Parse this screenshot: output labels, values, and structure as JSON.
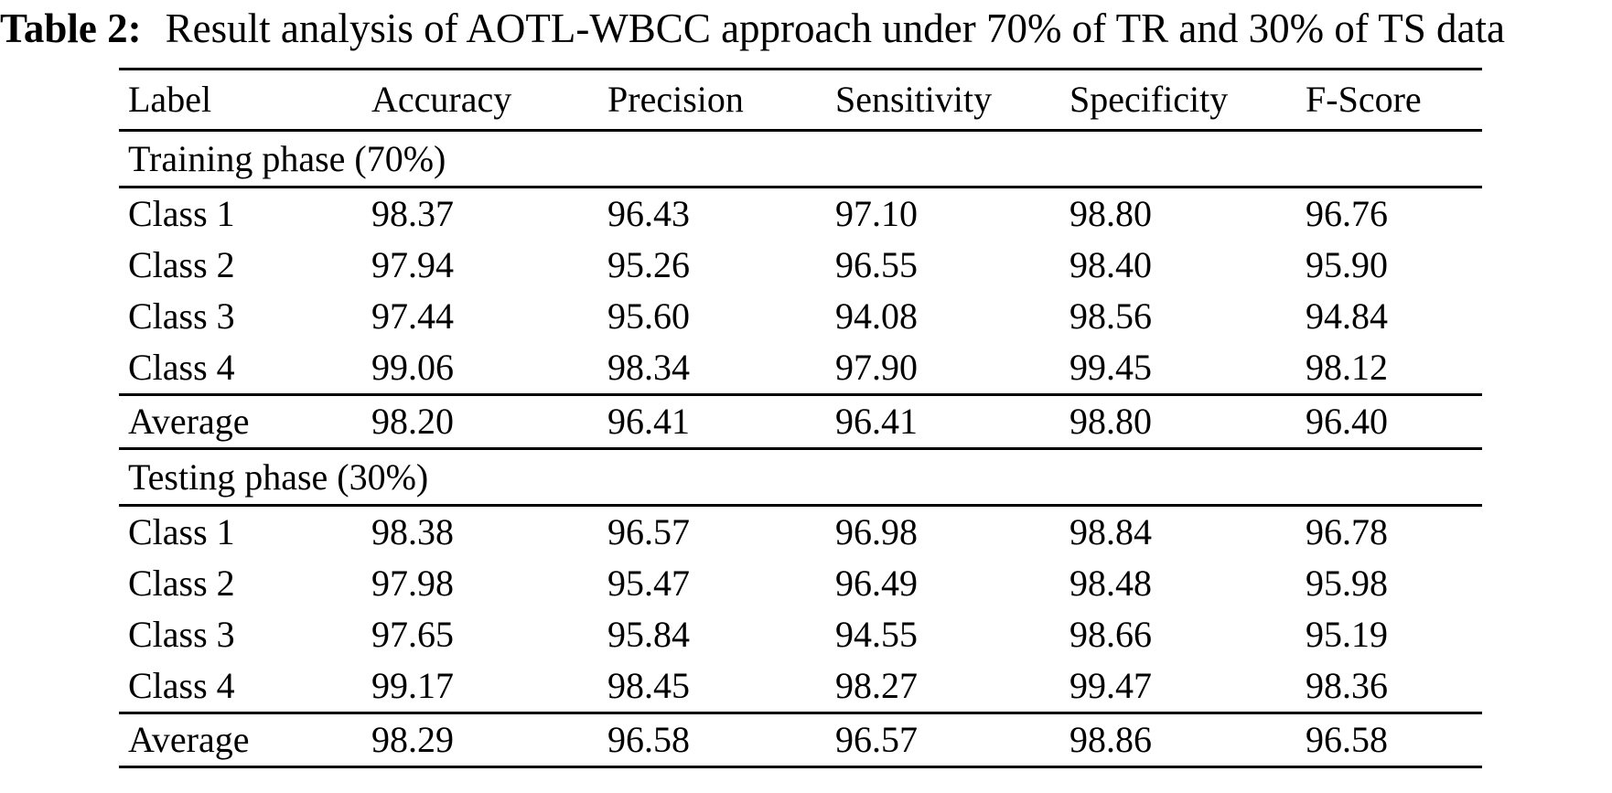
{
  "caption": {
    "label": "Table 2:",
    "text": "Result analysis of AOTL-WBCC approach under 70% of TR and 30% of TS data"
  },
  "table": {
    "columns": [
      "Label",
      "Accuracy",
      "Precision",
      "Sensitivity",
      "Specificity",
      "F-Score"
    ],
    "sections": [
      {
        "header": "Training phase (70%)",
        "rows": [
          {
            "cells": [
              "Class 1",
              "98.37",
              "96.43",
              "97.10",
              "98.80",
              "96.76"
            ]
          },
          {
            "cells": [
              "Class 2",
              "97.94",
              "95.26",
              "96.55",
              "98.40",
              "95.90"
            ]
          },
          {
            "cells": [
              "Class 3",
              "97.44",
              "95.60",
              "94.08",
              "98.56",
              "94.84"
            ]
          },
          {
            "cells": [
              "Class 4",
              "99.06",
              "98.34",
              "97.90",
              "99.45",
              "98.12"
            ]
          }
        ],
        "average": {
          "cells": [
            "Average",
            "98.20",
            "96.41",
            "96.41",
            "98.80",
            "96.40"
          ]
        }
      },
      {
        "header": "Testing phase (30%)",
        "rows": [
          {
            "cells": [
              "Class 1",
              "98.38",
              "96.57",
              "96.98",
              "98.84",
              "96.78"
            ]
          },
          {
            "cells": [
              "Class 2",
              "97.98",
              "95.47",
              "96.49",
              "98.48",
              "95.98"
            ]
          },
          {
            "cells": [
              "Class 3",
              "97.65",
              "95.84",
              "94.55",
              "98.66",
              "95.19"
            ]
          },
          {
            "cells": [
              "Class 4",
              "99.17",
              "98.45",
              "98.27",
              "99.47",
              "98.36"
            ]
          }
        ],
        "average": {
          "cells": [
            "Average",
            "98.29",
            "96.58",
            "96.57",
            "98.86",
            "96.58"
          ]
        }
      }
    ]
  },
  "colors": {
    "text": "#000000",
    "background": "#ffffff",
    "rule": "#000000"
  }
}
